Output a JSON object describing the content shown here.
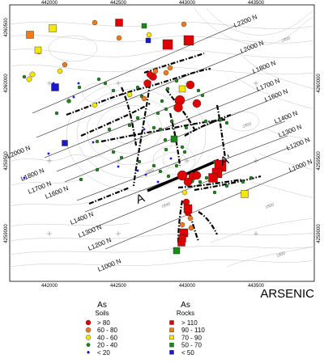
{
  "map": {
    "title": "ARSENIC",
    "x_ticks": [
      "442000",
      "442500",
      "443000",
      "443500"
    ],
    "y_ticks": [
      "4260000",
      "4259500",
      "4259000"
    ],
    "y_tick_edge_top": "4260500",
    "section": {
      "start_label": "A",
      "end_label": "A'"
    },
    "line_labels_upper": [
      "L2200 N",
      "L2000 N",
      "L1800 N",
      "L1700 N",
      "L1600 N",
      "L1400 N",
      "L1300 N",
      "L1200 N",
      "L1000 N"
    ],
    "line_labels_left": [
      "L2000 N",
      "L1800 N",
      "L1700 N",
      "L1600 N",
      "L1400 N",
      "L1300 N",
      "L1200 N",
      "L1000 N"
    ],
    "contour_labels": [
      "1850",
      "1840",
      "1860",
      "1850",
      "1800",
      "1850"
    ]
  },
  "legend": {
    "soils": {
      "title": "As",
      "subtitle": "Soils",
      "classes": [
        {
          "label": "> 80",
          "color": "#e00000"
        },
        {
          "label": "60 - 80",
          "color": "#f07a1a"
        },
        {
          "label": "40 - 60",
          "color": "#f5e800"
        },
        {
          "label": "20 - 40",
          "color": "#1a8a1a"
        },
        {
          "label": "< 20",
          "color": "#1a1acc"
        }
      ]
    },
    "rocks": {
      "title": "As",
      "subtitle": "Rocks",
      "classes": [
        {
          "label": "> 110",
          "color": "#e00000"
        },
        {
          "label": "90 - 110",
          "color": "#f07a1a"
        },
        {
          "label": "70 - 90",
          "color": "#f5e800"
        },
        {
          "label": "50 - 70",
          "color": "#1a8a1a"
        },
        {
          "label": "< 50",
          "color": "#1a1acc"
        }
      ]
    }
  }
}
